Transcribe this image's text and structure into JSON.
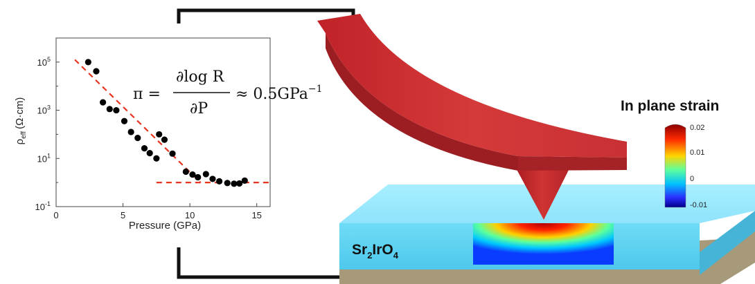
{
  "chart_data": {
    "type": "scatter",
    "xlabel": "Pressure (GPa)",
    "ylabel_main": "ρ",
    "ylabel_sub": "eff",
    "ylabel_unit": "(Ω·cm)",
    "xlim": [
      0,
      16
    ],
    "ylim_log10": [
      -1,
      6
    ],
    "x_ticks": [
      0,
      5,
      10,
      15
    ],
    "y_ticks": [
      {
        "base": "10",
        "exp": "-1",
        "log": -1
      },
      {
        "base": "10",
        "exp": "1",
        "log": 1
      },
      {
        "base": "10",
        "exp": "3",
        "log": 3
      },
      {
        "base": "10",
        "exp": "5",
        "log": 5
      }
    ],
    "points": [
      {
        "x": 2.4,
        "y": 5.0
      },
      {
        "x": 3.0,
        "y": 4.62
      },
      {
        "x": 3.5,
        "y": 3.33
      },
      {
        "x": 4.0,
        "y": 3.05
      },
      {
        "x": 4.5,
        "y": 3.0
      },
      {
        "x": 5.1,
        "y": 2.55
      },
      {
        "x": 5.6,
        "y": 2.1
      },
      {
        "x": 6.1,
        "y": 1.85
      },
      {
        "x": 6.6,
        "y": 1.42
      },
      {
        "x": 7.0,
        "y": 1.22
      },
      {
        "x": 7.5,
        "y": 1.0
      },
      {
        "x": 7.7,
        "y": 2.0
      },
      {
        "x": 8.1,
        "y": 1.78
      },
      {
        "x": 8.7,
        "y": 1.2
      },
      {
        "x": 9.7,
        "y": 0.45
      },
      {
        "x": 10.2,
        "y": 0.33
      },
      {
        "x": 10.6,
        "y": 0.22
      },
      {
        "x": 11.2,
        "y": 0.35
      },
      {
        "x": 11.7,
        "y": 0.15
      },
      {
        "x": 12.2,
        "y": 0.05
      },
      {
        "x": 12.8,
        "y": -0.02
      },
      {
        "x": 13.3,
        "y": -0.05
      },
      {
        "x": 13.7,
        "y": -0.04
      },
      {
        "x": 14.1,
        "y": 0.08
      }
    ],
    "fit_lines": [
      {
        "x": [
          1.4,
          10.8
        ],
        "y": [
          5.1,
          0.0
        ]
      },
      {
        "x": [
          7.5,
          16.2
        ],
        "y": [
          0.0,
          0.0
        ]
      }
    ]
  },
  "formula": {
    "lhs": "π =",
    "numerator": "∂log R",
    "denominator": "∂P",
    "rhs": "≈ 0.5GPa",
    "rhs_exp": "−1"
  },
  "strain_colorbar": {
    "title": "In plane strain",
    "tick_labels": [
      "0.02",
      "0.01",
      "0",
      "-0.01"
    ],
    "gradient": [
      "#8b0000",
      "#ff2a00",
      "#ffd400",
      "#5cff9d",
      "#00bfff",
      "#2a2fff",
      "#00008b"
    ]
  },
  "material": {
    "text": "Sr",
    "sub1": "2",
    "mid": "IrO",
    "sub2": "4"
  },
  "colors": {
    "cantilever": "#c4262b",
    "substrate_top": "#9cecff",
    "substrate_front": "#5ad4f2",
    "base": "#a69a7a",
    "fit_line": "#e8331e"
  }
}
